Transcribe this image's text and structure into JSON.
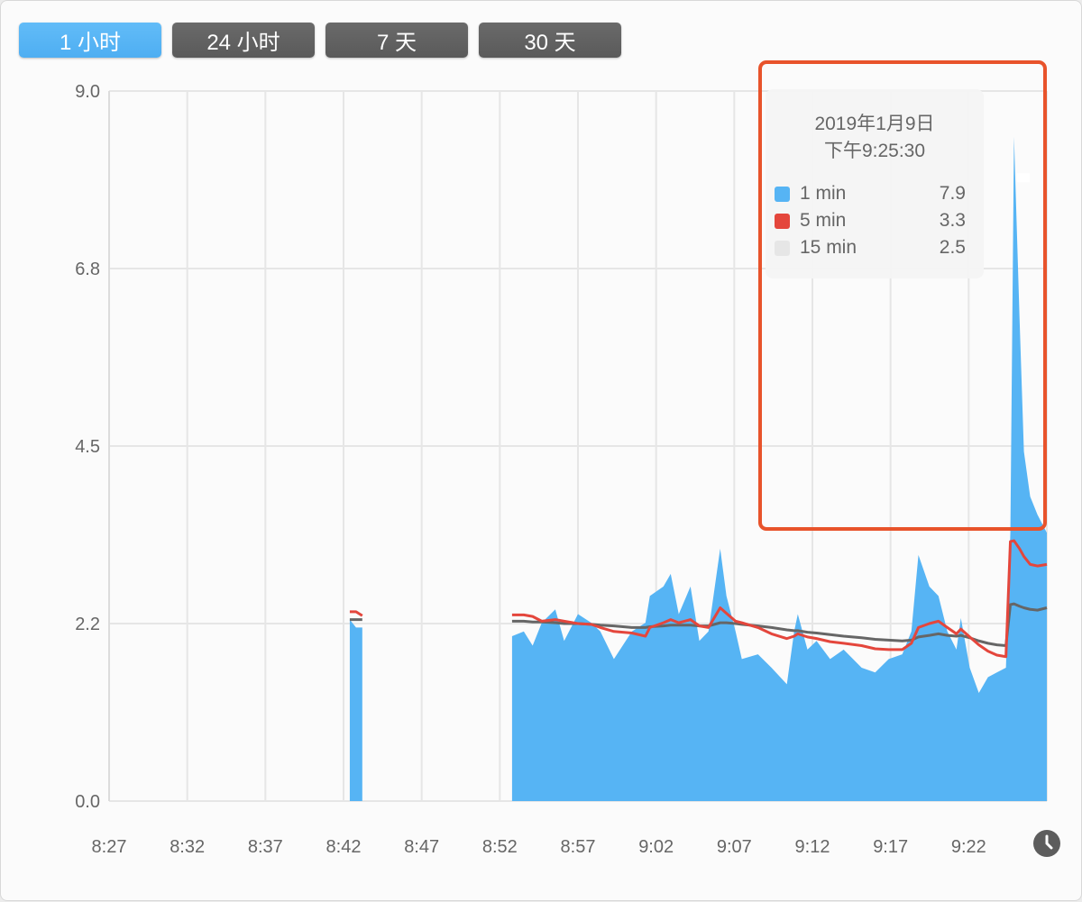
{
  "range_buttons": [
    {
      "label": "1 小时",
      "active": true
    },
    {
      "label": "24 小时",
      "active": false
    },
    {
      "label": "7 天",
      "active": false
    },
    {
      "label": "30 天",
      "active": false
    }
  ],
  "colors": {
    "one_min": "#56b4f4",
    "five_min": "#e4463c",
    "fifteen_min": "#666666",
    "annotation": "#e8532b",
    "active_button": "#55b3f5"
  },
  "tooltip": {
    "date": "2019年1月9日",
    "time": "下午9:25:30",
    "rows": [
      {
        "label": "1 min",
        "value": "7.9",
        "color": "#56b4f4"
      },
      {
        "label": "5 min",
        "value": "3.3",
        "color": "#e4463c"
      },
      {
        "label": "15 min",
        "value": "2.5",
        "color": "#e6e6e6"
      }
    ]
  },
  "footer": {
    "clock_icon": "clock-icon"
  },
  "chart_data": {
    "type": "area",
    "ylim": [
      0,
      9.0
    ],
    "yticks": [
      "0.0",
      "2.2",
      "4.5",
      "6.8",
      "9.0"
    ],
    "ytick_values": [
      0,
      2.25,
      4.5,
      6.75,
      9.0
    ],
    "xlim": [
      "8:27",
      "9:27"
    ],
    "xticks": [
      "8:27",
      "8:32",
      "8:37",
      "8:42",
      "8:47",
      "8:52",
      "8:57",
      "9:02",
      "9:07",
      "9:12",
      "9:17",
      "9:22"
    ],
    "grid": true,
    "series_names": [
      "1 min",
      "5 min",
      "15 min"
    ],
    "segments": [
      {
        "x": [
          "8:42:24",
          "8:42:48",
          "8:43:12"
        ],
        "one_min": [
          2.3,
          2.2,
          2.2
        ],
        "five_min": [
          2.4,
          2.4,
          2.35
        ],
        "fifteen_min": [
          2.3,
          2.3,
          2.3
        ]
      },
      {
        "x": [
          "8:52:47",
          "8:53:32",
          "8:54:06",
          "8:54:41",
          "8:55:33",
          "8:56:07",
          "8:57:00",
          "8:57:51",
          "8:58:26",
          "8:59:18",
          "9:00:27",
          "9:01:19",
          "9:01:36",
          "9:02:28",
          "9:02:56",
          "9:03:27",
          "9:04:12",
          "9:04:46",
          "9:05:21",
          "9:06:06",
          "9:06:30",
          "9:07:05",
          "9:07:29",
          "9:08:31",
          "9:09:23",
          "9:10:22",
          "9:10:50",
          "9:11:04",
          "9:11:41",
          "9:12:16",
          "9:13:08",
          "9:14:00",
          "9:15:09",
          "9:16:01",
          "9:16:53",
          "9:17:45",
          "9:18:20",
          "9:18:47",
          "9:19:29",
          "9:20:04",
          "9:20:38",
          "9:21:13",
          "9:21:30",
          "9:22:04",
          "9:22:39",
          "9:23:14",
          "9:23:48",
          "9:24:23",
          "9:24:40",
          "9:24:54",
          "9:25:15",
          "9:25:32",
          "9:25:56",
          "9:26:24",
          "9:27:00"
        ],
        "one_min": [
          2.09,
          2.15,
          1.97,
          2.26,
          2.43,
          2.03,
          2.37,
          2.26,
          2.15,
          1.8,
          2.15,
          2.26,
          2.6,
          2.72,
          2.88,
          2.37,
          2.72,
          2.03,
          2.15,
          3.2,
          2.6,
          2.15,
          1.8,
          1.86,
          1.69,
          1.48,
          2.15,
          2.37,
          1.92,
          2.03,
          1.8,
          1.92,
          1.69,
          1.63,
          1.8,
          1.86,
          2.15,
          3.12,
          2.72,
          2.6,
          2.15,
          1.92,
          2.32,
          1.69,
          1.37,
          1.57,
          1.63,
          1.69,
          3.4,
          8.42,
          6.14,
          4.43,
          3.86,
          3.63,
          3.4
        ],
        "five_min": [
          2.36,
          2.36,
          2.34,
          2.28,
          2.3,
          2.28,
          2.25,
          2.24,
          2.2,
          2.15,
          2.13,
          2.09,
          2.2,
          2.26,
          2.3,
          2.26,
          2.3,
          2.22,
          2.2,
          2.45,
          2.38,
          2.28,
          2.26,
          2.2,
          2.12,
          2.06,
          2.09,
          2.12,
          2.08,
          2.06,
          2.02,
          2.0,
          1.97,
          1.93,
          1.92,
          1.92,
          2.0,
          2.2,
          2.25,
          2.28,
          2.2,
          2.12,
          2.18,
          2.08,
          1.98,
          1.9,
          1.85,
          1.83,
          3.29,
          3.3,
          3.2,
          3.1,
          3.0,
          2.98,
          3.0
        ],
        "fifteen_min": [
          2.28,
          2.28,
          2.27,
          2.27,
          2.26,
          2.25,
          2.25,
          2.24,
          2.23,
          2.22,
          2.2,
          2.2,
          2.21,
          2.22,
          2.23,
          2.23,
          2.23,
          2.22,
          2.22,
          2.26,
          2.26,
          2.25,
          2.24,
          2.22,
          2.2,
          2.17,
          2.16,
          2.16,
          2.14,
          2.13,
          2.11,
          2.09,
          2.07,
          2.05,
          2.04,
          2.03,
          2.04,
          2.08,
          2.1,
          2.12,
          2.1,
          2.09,
          2.1,
          2.07,
          2.03,
          2.0,
          1.98,
          1.97,
          2.49,
          2.5,
          2.47,
          2.45,
          2.43,
          2.42,
          2.45
        ]
      }
    ]
  }
}
